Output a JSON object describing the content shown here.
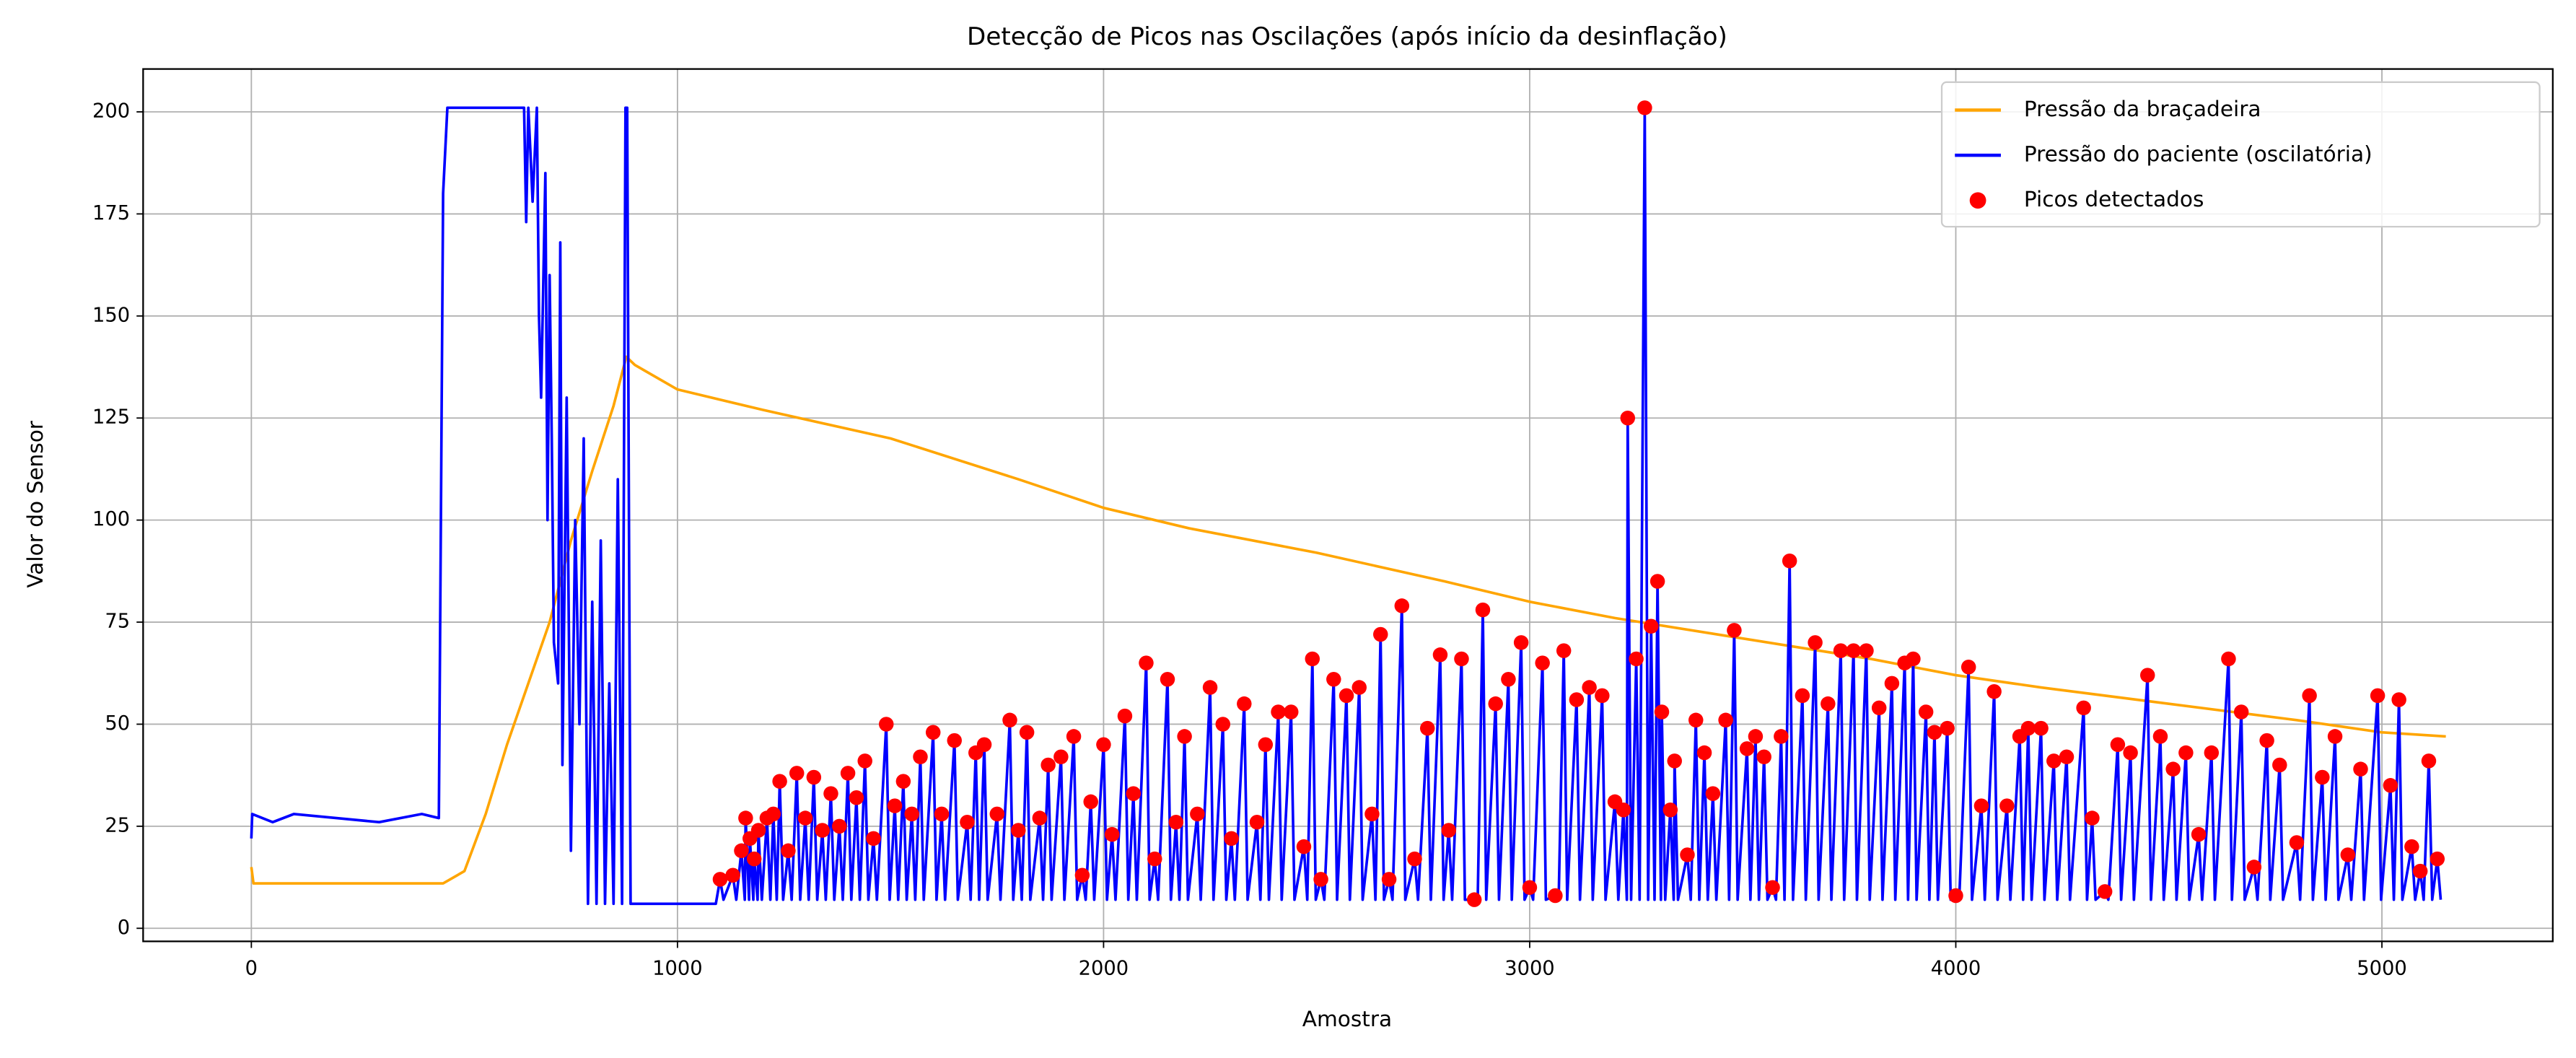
{
  "chart_data": {
    "type": "line",
    "title": "Detecção de Picos nas Oscilações (após início da desinflação)",
    "xlabel": "Amostra",
    "ylabel": "Valor do Sensor",
    "xlim": [
      -254,
      5401
    ],
    "ylim": [
      -3.2,
      210.5
    ],
    "xticks": [
      0,
      1000,
      2000,
      3000,
      4000,
      5000
    ],
    "yticks": [
      0,
      25,
      50,
      75,
      100,
      125,
      150,
      175,
      200
    ],
    "grid": true,
    "legend": "upper right",
    "series": [
      {
        "name": "Pressão da braçadeira",
        "color": "#ffa500",
        "mode": "lines",
        "x": [
          0,
          5,
          450,
          500,
          550,
          600,
          650,
          700,
          750,
          800,
          850,
          880,
          900,
          1000,
          1200,
          1500,
          1800,
          2000,
          2200,
          2500,
          2800,
          3000,
          3200,
          3500,
          3800,
          4000,
          4200,
          4500,
          4800,
          5000,
          5150
        ],
        "values": [
          15,
          11,
          11,
          14,
          28,
          45,
          60,
          75,
          95,
          112,
          128,
          140,
          138,
          132,
          127,
          120,
          110,
          103,
          98,
          92,
          85,
          80,
          76,
          71,
          66,
          62,
          59,
          55,
          51,
          48,
          47
        ]
      },
      {
        "name": "Pressão do paciente (oscilatória)",
        "color": "#0000ff",
        "mode": "lines",
        "x": [
          0,
          2,
          50,
          100,
          200,
          300,
          400,
          440,
          450,
          460,
          640,
          645,
          650,
          655,
          660,
          670,
          675,
          680,
          690,
          695,
          700,
          705,
          710,
          720,
          725,
          730,
          740,
          750,
          760,
          770,
          780,
          790,
          800,
          810,
          820,
          830,
          840,
          850,
          860,
          870,
          878,
          882,
          890,
          900,
          1000,
          1090,
          1100,
          1108,
          1130,
          1138,
          1150,
          1158,
          1160,
          1168,
          1170,
          1178,
          1180,
          1188,
          1190,
          1198,
          1210,
          1218,
          1225,
          1233,
          1240,
          1248,
          1260,
          1268,
          1280,
          1288,
          1300,
          1308,
          1320,
          1328,
          1340,
          1348,
          1360,
          1368,
          1380,
          1388,
          1400,
          1408,
          1420,
          1428,
          1440,
          1448,
          1460,
          1468,
          1490,
          1498,
          1510,
          1518,
          1530,
          1538,
          1550,
          1558,
          1570,
          1578,
          1600,
          1608,
          1620,
          1628,
          1650,
          1658,
          1680,
          1688,
          1700,
          1708,
          1720,
          1728,
          1750,
          1758,
          1780,
          1788,
          1800,
          1808,
          1820,
          1828,
          1850,
          1858,
          1870,
          1878,
          1900,
          1908,
          1930,
          1938,
          1950,
          1958,
          1970,
          1978,
          2000,
          2008,
          2020,
          2028,
          2050,
          2058,
          2070,
          2078,
          2100,
          2108,
          2120,
          2128,
          2150,
          2158,
          2170,
          2178,
          2190,
          2198,
          2220,
          2228,
          2250,
          2258,
          2280,
          2288,
          2300,
          2308,
          2330,
          2338,
          2360,
          2368,
          2380,
          2388,
          2410,
          2418,
          2440,
          2448,
          2470,
          2478,
          2490,
          2498,
          2510,
          2518,
          2540,
          2548,
          2570,
          2578,
          2600,
          2608,
          2630,
          2638,
          2650,
          2658,
          2670,
          2678,
          2700,
          2708,
          2730,
          2738,
          2760,
          2768,
          2790,
          2798,
          2810,
          2818,
          2840,
          2848,
          2870,
          2878,
          2890,
          2898,
          2920,
          2928,
          2950,
          2958,
          2980,
          2988,
          3000,
          3008,
          3030,
          3038,
          3060,
          3068,
          3080,
          3088,
          3110,
          3118,
          3140,
          3148,
          3170,
          3178,
          3200,
          3208,
          3220,
          3228,
          3230,
          3238,
          3250,
          3258,
          3270,
          3278,
          3285,
          3293,
          3300,
          3308,
          3310,
          3318,
          3330,
          3338,
          3340,
          3348,
          3370,
          3378,
          3390,
          3398,
          3410,
          3418,
          3430,
          3438,
          3460,
          3468,
          3480,
          3488,
          3510,
          3518,
          3530,
          3538,
          3550,
          3558,
          3570,
          3578,
          3590,
          3598,
          3610,
          3618,
          3640,
          3648,
          3670,
          3678,
          3700,
          3708,
          3730,
          3738,
          3760,
          3768,
          3790,
          3798,
          3820,
          3828,
          3850,
          3858,
          3880,
          3888,
          3900,
          3908,
          3930,
          3938,
          3950,
          3958,
          3980,
          3988,
          4000,
          4008,
          4030,
          4038,
          4060,
          4068,
          4090,
          4098,
          4120,
          4128,
          4150,
          4158,
          4170,
          4178,
          4200,
          4208,
          4230,
          4238,
          4260,
          4268,
          4300,
          4308,
          4320,
          4328,
          4350,
          4358,
          4380,
          4388,
          4410,
          4418,
          4450,
          4458,
          4480,
          4488,
          4510,
          4518,
          4540,
          4548,
          4570,
          4578,
          4600,
          4608,
          4640,
          4648,
          4670,
          4678,
          4700,
          4708,
          4730,
          4738,
          4760,
          4768,
          4800,
          4808,
          4830,
          4838,
          4860,
          4868,
          4890,
          4898,
          4920,
          4928,
          4950,
          4958,
          4990,
          4998,
          5020,
          5028,
          5040,
          5048,
          5070,
          5078,
          5090,
          5098,
          5110,
          5118,
          5130,
          5138
        ],
        "values": [
          22,
          28,
          26,
          28,
          27,
          26,
          28,
          27,
          180,
          201,
          201,
          173,
          201,
          190,
          178,
          201,
          150,
          130,
          185,
          100,
          160,
          120,
          70,
          60,
          168,
          40,
          130,
          19,
          100,
          50,
          120,
          6,
          80,
          6,
          95,
          6,
          60,
          6,
          110,
          6,
          201,
          201,
          6,
          6,
          6,
          6,
          12,
          7,
          13,
          7,
          19,
          7,
          27,
          7,
          22,
          7,
          17,
          7,
          24,
          7,
          27,
          7,
          28,
          7,
          36,
          7,
          19,
          7,
          38,
          7,
          27,
          7,
          37,
          7,
          24,
          7,
          33,
          7,
          25,
          7,
          38,
          7,
          32,
          7,
          41,
          7,
          22,
          7,
          50,
          7,
          30,
          7,
          36,
          7,
          28,
          7,
          42,
          7,
          48,
          7,
          28,
          7,
          46,
          7,
          26,
          7,
          43,
          7,
          45,
          7,
          28,
          7,
          51,
          7,
          24,
          7,
          48,
          7,
          27,
          7,
          40,
          7,
          42,
          7,
          47,
          7,
          13,
          7,
          31,
          7,
          45,
          7,
          23,
          7,
          52,
          7,
          33,
          7,
          65,
          7,
          17,
          7,
          61,
          7,
          26,
          7,
          47,
          7,
          28,
          7,
          59,
          7,
          50,
          7,
          22,
          7,
          55,
          7,
          26,
          7,
          45,
          7,
          53,
          7,
          53,
          7,
          20,
          7,
          66,
          7,
          12,
          7,
          61,
          7,
          57,
          7,
          59,
          7,
          28,
          7,
          72,
          7,
          12,
          7,
          79,
          7,
          17,
          7,
          49,
          7,
          67,
          7,
          24,
          7,
          66,
          7,
          7,
          7,
          78,
          7,
          55,
          7,
          61,
          7,
          70,
          7,
          10,
          7,
          65,
          7,
          8,
          7,
          68,
          7,
          56,
          7,
          59,
          7,
          57,
          7,
          31,
          7,
          29,
          7,
          125,
          7,
          66,
          7,
          201,
          7,
          74,
          7,
          85,
          7,
          53,
          7,
          29,
          7,
          41,
          7,
          18,
          7,
          51,
          7,
          43,
          7,
          33,
          7,
          51,
          7,
          73,
          7,
          44,
          7,
          47,
          7,
          42,
          7,
          10,
          7,
          47,
          7,
          90,
          7,
          57,
          7,
          70,
          7,
          55,
          7,
          68,
          7,
          68,
          7,
          68,
          7,
          54,
          7,
          60,
          7,
          65,
          7,
          66,
          7,
          53,
          7,
          48,
          7,
          49,
          7,
          8,
          7,
          64,
          7,
          30,
          7,
          58,
          7,
          30,
          7,
          47,
          7,
          49,
          7,
          49,
          7,
          41,
          7,
          42,
          7,
          54,
          7,
          27,
          7,
          9,
          7,
          45,
          7,
          43,
          7,
          62,
          7,
          47,
          7,
          39,
          7,
          43,
          7,
          23,
          7,
          43,
          7,
          66,
          7,
          53,
          7,
          15,
          7,
          46,
          7,
          40,
          7,
          21,
          7,
          57,
          7,
          37,
          7,
          47,
          7,
          18,
          7,
          39,
          7,
          57,
          7,
          35,
          7,
          56,
          7,
          20,
          7,
          14,
          7,
          41,
          7,
          17,
          7
        ]
      },
      {
        "name": "Picos detectados",
        "color": "#ff0000",
        "mode": "markers",
        "x": [
          1100,
          1130,
          1150,
          1160,
          1170,
          1180,
          1190,
          1210,
          1225,
          1240,
          1260,
          1280,
          1300,
          1320,
          1340,
          1360,
          1380,
          1400,
          1420,
          1440,
          1460,
          1490,
          1510,
          1530,
          1550,
          1570,
          1600,
          1620,
          1650,
          1680,
          1700,
          1720,
          1750,
          1780,
          1800,
          1820,
          1850,
          1870,
          1900,
          1930,
          1950,
          1970,
          2000,
          2020,
          2050,
          2070,
          2100,
          2120,
          2150,
          2170,
          2190,
          2220,
          2250,
          2280,
          2300,
          2330,
          2360,
          2380,
          2410,
          2440,
          2470,
          2490,
          2510,
          2540,
          2570,
          2600,
          2630,
          2650,
          2670,
          2700,
          2730,
          2760,
          2790,
          2810,
          2840,
          2870,
          2890,
          2920,
          2950,
          2980,
          3000,
          3030,
          3060,
          3080,
          3110,
          3140,
          3170,
          3200,
          3220,
          3230,
          3250,
          3270,
          3285,
          3300,
          3310,
          3330,
          3340,
          3370,
          3390,
          3410,
          3430,
          3460,
          3480,
          3510,
          3530,
          3550,
          3570,
          3590,
          3610,
          3640,
          3670,
          3700,
          3730,
          3760,
          3790,
          3820,
          3850,
          3880,
          3900,
          3930,
          3950,
          3980,
          4000,
          4030,
          4060,
          4090,
          4120,
          4150,
          4170,
          4200,
          4230,
          4260,
          4300,
          4320,
          4350,
          4380,
          4410,
          4450,
          4480,
          4510,
          4540,
          4570,
          4600,
          4640,
          4670,
          4700,
          4730,
          4760,
          4800,
          4830,
          4860,
          4890,
          4920,
          4950,
          4990,
          5020,
          5040,
          5070,
          5090,
          5110,
          5130
        ],
        "values": [
          12,
          13,
          19,
          27,
          22,
          17,
          24,
          27,
          28,
          36,
          19,
          38,
          27,
          37,
          24,
          33,
          25,
          38,
          32,
          41,
          22,
          50,
          30,
          36,
          28,
          42,
          48,
          28,
          46,
          26,
          43,
          45,
          28,
          51,
          24,
          48,
          27,
          40,
          42,
          47,
          13,
          31,
          45,
          23,
          52,
          33,
          65,
          17,
          61,
          26,
          47,
          28,
          59,
          50,
          22,
          55,
          26,
          45,
          53,
          53,
          20,
          66,
          12,
          61,
          57,
          59,
          28,
          72,
          12,
          79,
          17,
          49,
          67,
          24,
          66,
          7,
          78,
          55,
          61,
          70,
          10,
          65,
          8,
          68,
          56,
          59,
          57,
          31,
          29,
          125,
          66,
          201,
          74,
          85,
          53,
          29,
          41,
          18,
          51,
          43,
          33,
          51,
          73,
          44,
          47,
          42,
          10,
          47,
          90,
          57,
          70,
          55,
          68,
          68,
          68,
          54,
          60,
          65,
          66,
          53,
          48,
          49,
          8,
          64,
          30,
          58,
          30,
          47,
          49,
          49,
          41,
          42,
          54,
          27,
          9,
          45,
          43,
          62,
          47,
          39,
          43,
          23,
          43,
          66,
          53,
          15,
          46,
          40,
          21,
          57,
          37,
          47,
          18,
          39,
          57,
          35,
          56,
          20,
          14,
          41,
          17
        ]
      }
    ]
  }
}
